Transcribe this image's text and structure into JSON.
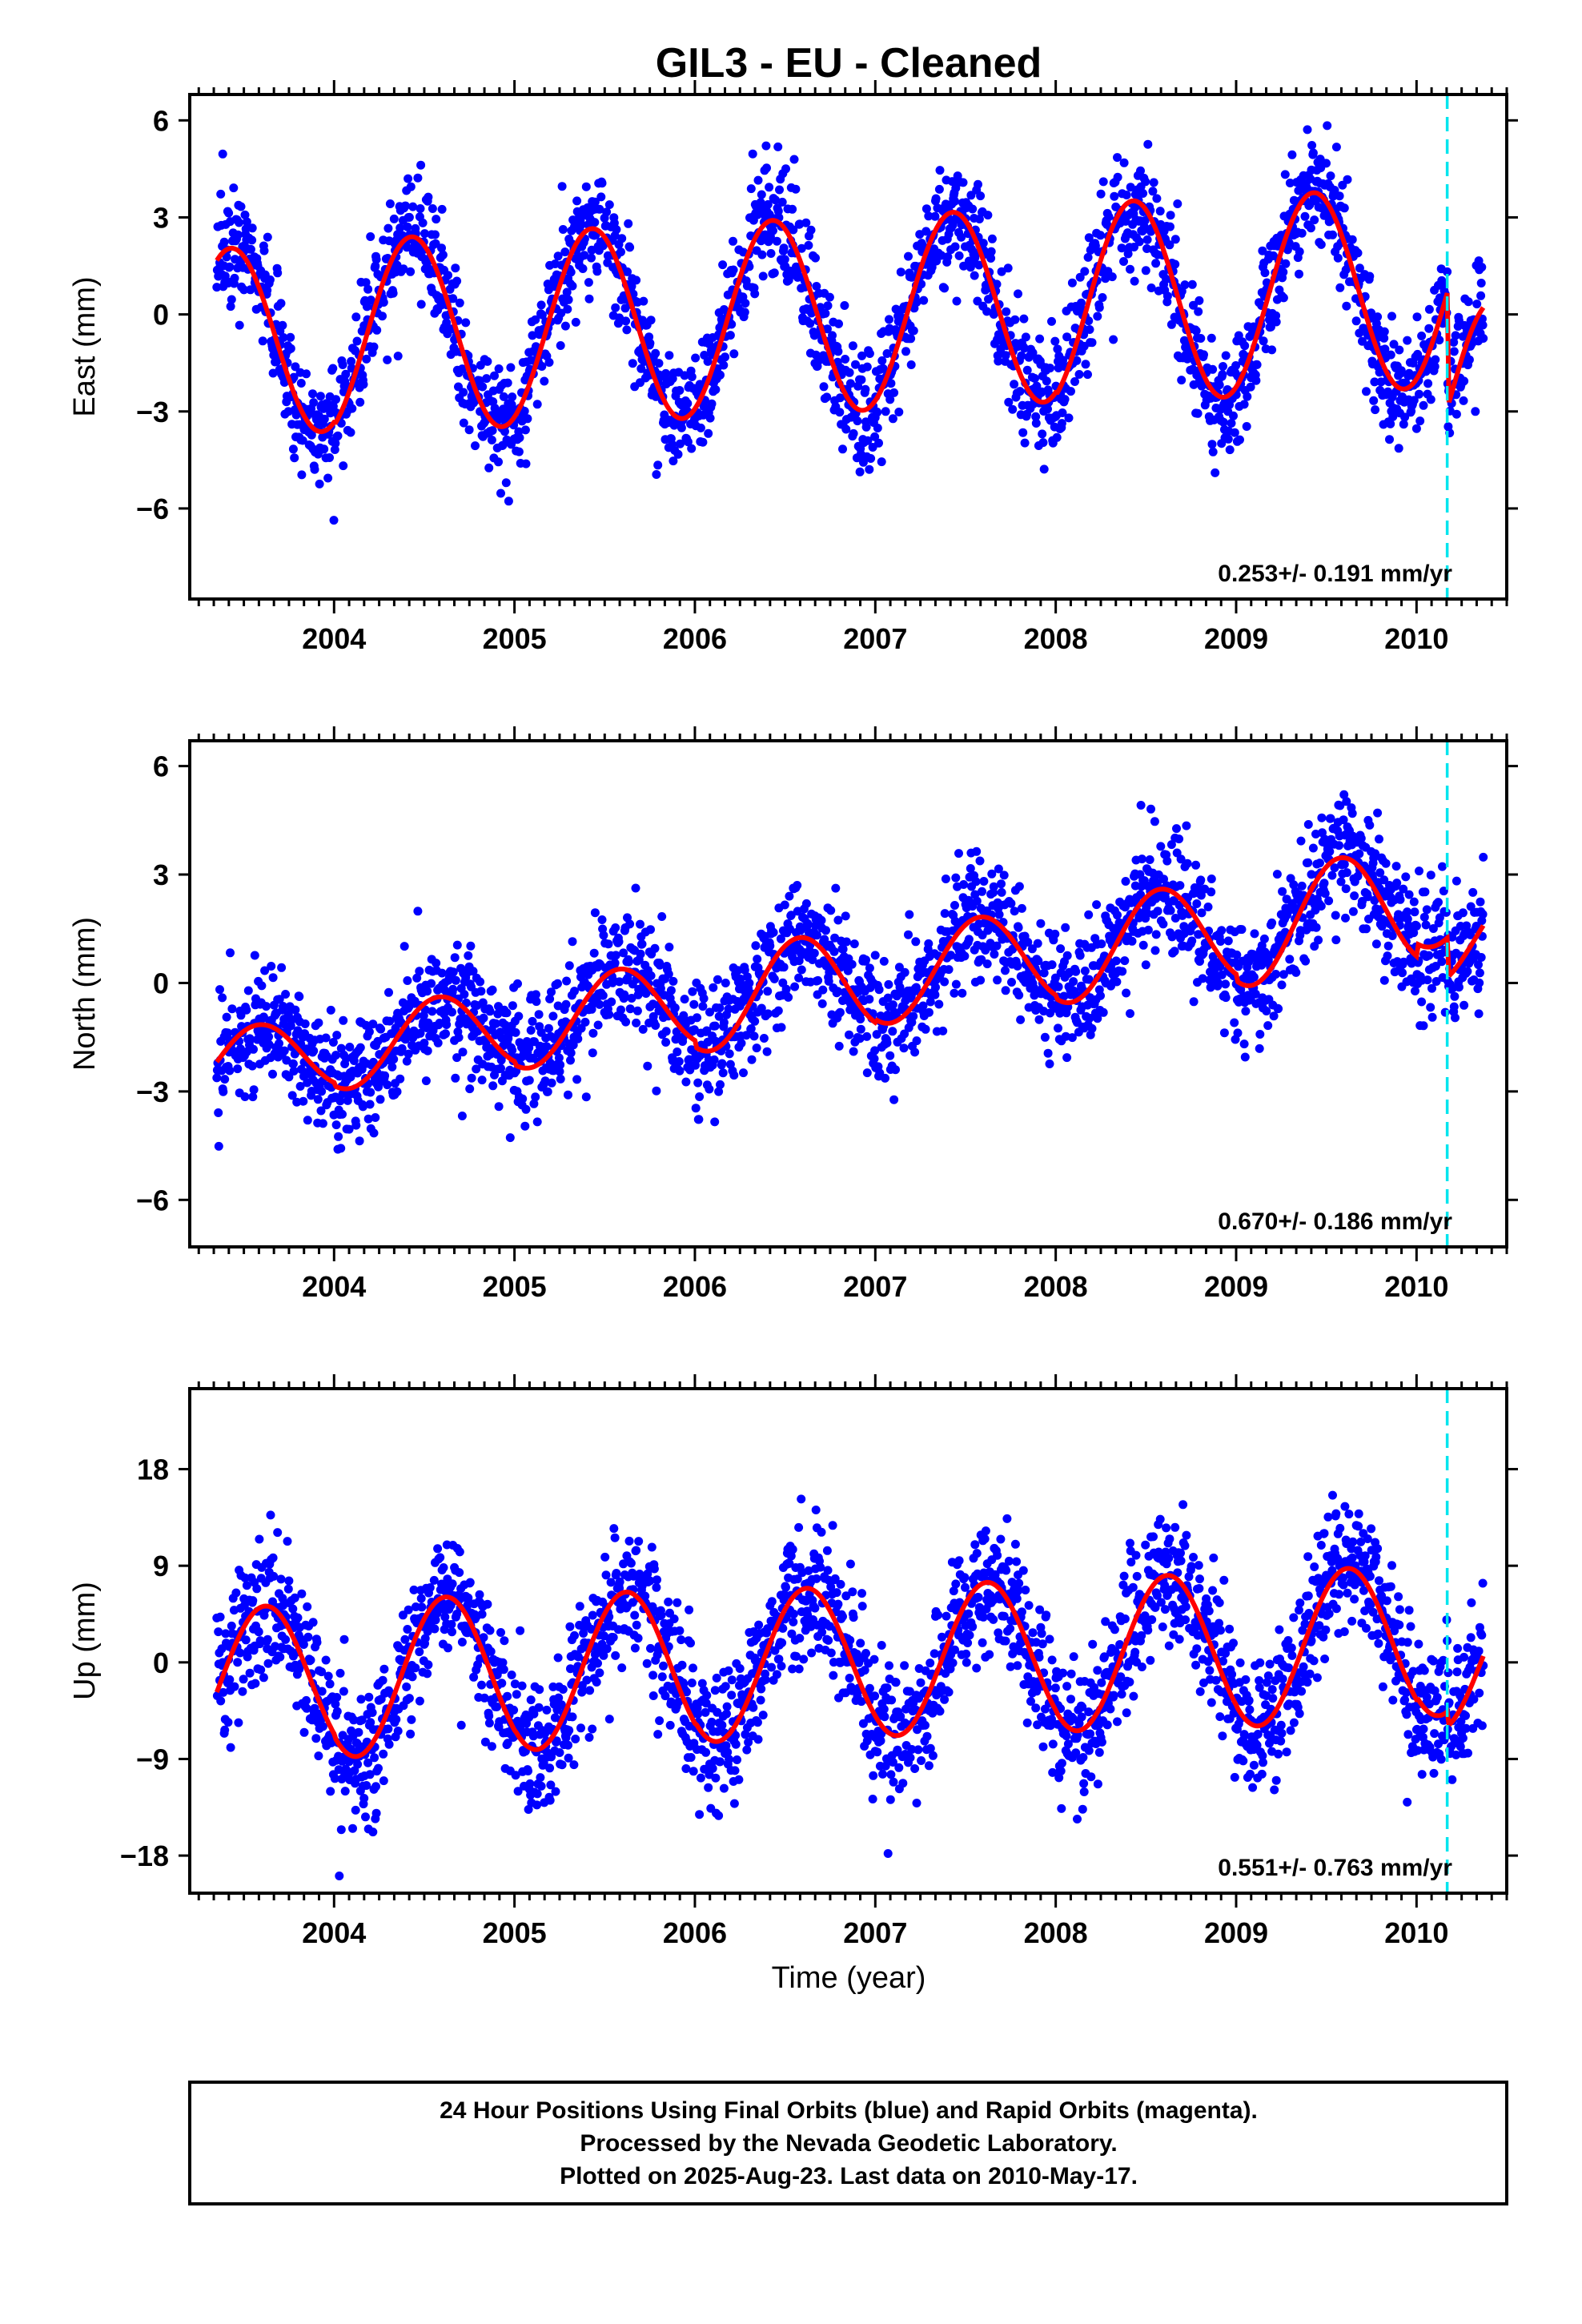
{
  "title": "GIL3  - EU - Cleaned",
  "x_axis_label": "Time (year)",
  "footer": {
    "line1": "24 Hour Positions Using Final Orbits (blue) and Rapid Orbits (magenta).",
    "line2": "Processed by the Nevada Geodetic Laboratory.",
    "line3": "Plotted on 2025-Aug-23. Last data on 2010-May-17."
  },
  "colors": {
    "points": "#0000ff",
    "model": "#ff0000",
    "equipment_change_line": "#00e5ee",
    "frame": "#000000"
  },
  "chart_data": [
    {
      "type": "scatter",
      "panel": "east",
      "ylabel": "East (mm)",
      "xlim": [
        2003.2,
        2010.5
      ],
      "ylim": [
        -8.8,
        6.8
      ],
      "yticks": [
        6,
        3,
        0,
        -3,
        -6
      ],
      "xticks": [
        2004,
        2005,
        2006,
        2007,
        2008,
        2009,
        2010
      ],
      "rate_label": "0.253+/- 0.191 mm/yr",
      "data_range": [
        2003.35,
        2010.37
      ],
      "equipment_change": 2010.17,
      "model": {
        "trend_per_year": 0.253,
        "annual_amplitude": [
          2.9,
          3.0,
          3.0,
          3.0,
          3.0,
          3.1,
          3.1,
          3.1
        ],
        "offset_at_break": -6.5,
        "peaks_near": [
          2003.43,
          2004.43,
          2005.43,
          2006.43,
          2007.43,
          2008.43,
          2009.43
        ]
      }
    },
    {
      "type": "scatter",
      "panel": "north",
      "ylabel": "North (mm)",
      "xlim": [
        2003.2,
        2010.5
      ],
      "ylim": [
        -7.3,
        6.7
      ],
      "yticks": [
        6,
        3,
        0,
        -3,
        -6
      ],
      "xticks": [
        2004,
        2005,
        2006,
        2007,
        2008,
        2009,
        2010
      ],
      "rate_label": "0.670+/- 0.186 mm/yr",
      "data_range": [
        2003.35,
        2010.37
      ],
      "equipment_change": 2010.17,
      "model": {
        "trend_per_year": 0.67,
        "annual_amplitude": [
          1.0,
          1.1,
          1.2,
          1.4,
          1.3,
          1.4,
          1.6,
          1.2
        ],
        "offset_at_break": -2.0,
        "peaks_near": [
          2003.58,
          2004.58,
          2005.55,
          2006.55,
          2007.58,
          2008.5,
          2009.55
        ]
      }
    },
    {
      "type": "scatter",
      "panel": "up",
      "ylabel": "Up (mm)",
      "xlim": [
        2003.2,
        2010.5
      ],
      "ylim": [
        -21.5,
        25.5
      ],
      "yticks": [
        18,
        9,
        0,
        -9,
        -18
      ],
      "xticks": [
        2004,
        2005,
        2006,
        2007,
        2008,
        2009,
        2010
      ],
      "rate_label": "0.551+/- 0.763 mm/yr",
      "data_range": [
        2003.35,
        2010.37
      ],
      "equipment_change": 2010.17,
      "model": {
        "trend_per_year": 0.551,
        "annual_amplitude": [
          7.0,
          7.3,
          7.2,
          7.0,
          7.0,
          7.1,
          7.2,
          6.8
        ],
        "offset_at_break": -2.5,
        "peaks_near": [
          2003.62,
          2004.6,
          2005.6,
          2006.6,
          2007.6,
          2008.6,
          2009.6
        ]
      }
    }
  ]
}
